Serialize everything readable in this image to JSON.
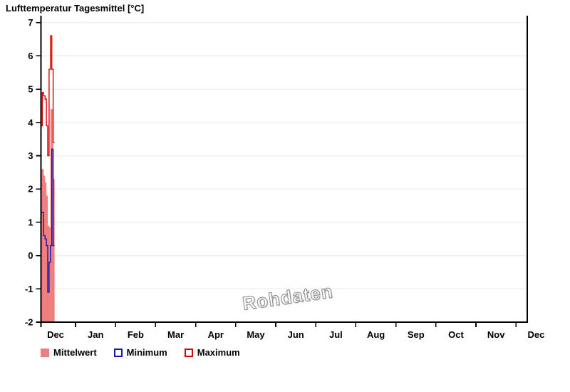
{
  "title": "Lufttemperatur Tagesmittel [°C]",
  "watermark": "Rohdaten",
  "legend": [
    {
      "label": "Mittelwert",
      "swatch": "filled-square",
      "color": "#ee7d7d"
    },
    {
      "label": "Minimum",
      "swatch": "outlined-square",
      "color": "#1717b4"
    },
    {
      "label": "Maximum",
      "swatch": "outlined-square",
      "color": "#d80000"
    }
  ],
  "chart_data": {
    "type": "bar",
    "title": "Lufttemperatur Tagesmittel [°C]",
    "xlabel": "",
    "ylabel": "",
    "ylim": [
      -2,
      7
    ],
    "grid": "horizontal-light",
    "legend_position": "bottom-left",
    "x_axis": {
      "tick_labels": [
        "Dec",
        "Jan",
        "Feb",
        "Mar",
        "Apr",
        "May",
        "Jun",
        "Jul",
        "Aug",
        "Sep",
        "Oct",
        "Nov",
        "Dec"
      ],
      "span_months": 13
    },
    "y_axis": {
      "ticks": [
        7,
        6,
        5,
        4,
        3,
        2,
        1,
        0,
        -1,
        -2
      ]
    },
    "categories": [
      "Dec 01",
      "Dec 02",
      "Dec 03",
      "Dec 04",
      "Dec 05",
      "Dec 06",
      "Dec 07",
      "Dec 08",
      "Dec 09",
      "Dec 10"
    ],
    "series": [
      {
        "name": "Mittelwert",
        "render": "bar",
        "color": "#ee7d7d",
        "values": [
          2.6,
          2.6,
          2.4,
          2.2,
          1.8,
          0.9,
          0.85,
          4.4,
          4.4,
          2.3
        ]
      },
      {
        "name": "Minimum",
        "render": "step-line",
        "color": "#1717b4",
        "values": [
          1.3,
          1.3,
          0.6,
          0.5,
          0.3,
          -1.1,
          -0.2,
          0.3,
          3.2,
          0.3
        ]
      },
      {
        "name": "Maximum",
        "render": "step-line",
        "color": "#d80000",
        "values": [
          3.9,
          4.9,
          4.8,
          4.7,
          3.9,
          3.0,
          5.6,
          6.6,
          5.6,
          3.4
        ]
      }
    ]
  }
}
